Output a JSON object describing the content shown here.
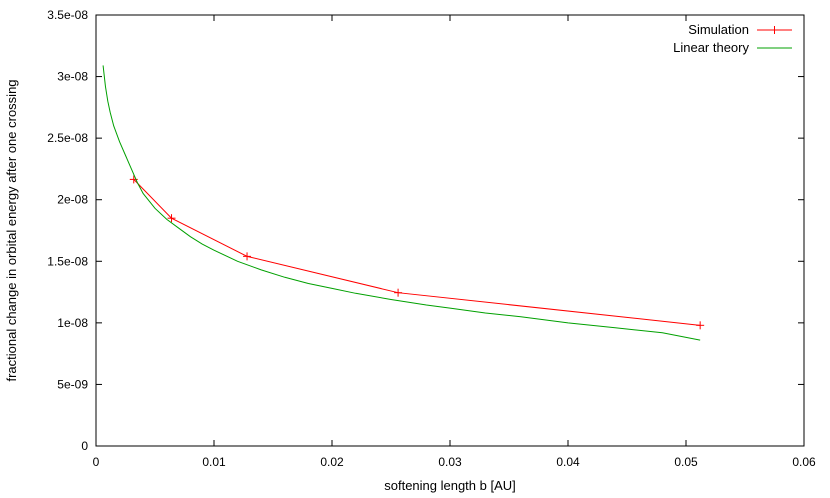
{
  "chart_data": {
    "type": "line",
    "title": "",
    "xlabel": "softening length b [AU]",
    "ylabel": "fractional change in orbital energy after one crossing",
    "xlim": [
      0,
      0.06
    ],
    "ylim": [
      0,
      3.5e-08
    ],
    "x_ticks": [
      0,
      0.01,
      0.02,
      0.03,
      0.04,
      0.05,
      0.06
    ],
    "x_tick_labels": [
      "0",
      "0.01",
      "0.02",
      "0.03",
      "0.04",
      "0.05",
      "0.06"
    ],
    "y_ticks": [
      0,
      5e-09,
      1e-08,
      1.5e-08,
      2e-08,
      2.5e-08,
      3e-08,
      3.5e-08
    ],
    "y_tick_labels": [
      "0",
      "5e-09",
      "1e-08",
      "1.5e-08",
      "2e-08",
      "2.5e-08",
      "3e-08",
      "3.5e-08"
    ],
    "grid": false,
    "legend_position": "top-right",
    "series": [
      {
        "name": "Simulation",
        "color": "#ff0000",
        "marker": "plus",
        "x": [
          0.0032,
          0.0064,
          0.0128,
          0.0256,
          0.0512
        ],
        "y": [
          2.165e-08,
          1.85e-08,
          1.54e-08,
          1.245e-08,
          9.8e-09
        ]
      },
      {
        "name": "Linear theory",
        "color": "#00a000",
        "marker": "none",
        "x": [
          0.0006,
          0.0008,
          0.001,
          0.0012,
          0.0015,
          0.002,
          0.0025,
          0.003,
          0.0035,
          0.004,
          0.005,
          0.006,
          0.007,
          0.008,
          0.009,
          0.01,
          0.012,
          0.014,
          0.016,
          0.018,
          0.02,
          0.022,
          0.025,
          0.028,
          0.03,
          0.033,
          0.036,
          0.04,
          0.044,
          0.048,
          0.0512
        ],
        "y": [
          3.09e-08,
          2.92e-08,
          2.8e-08,
          2.71e-08,
          2.6e-08,
          2.47e-08,
          2.36e-08,
          2.25e-08,
          2.14e-08,
          2.05e-08,
          1.93e-08,
          1.84e-08,
          1.77e-08,
          1.7e-08,
          1.64e-08,
          1.59e-08,
          1.5e-08,
          1.43e-08,
          1.37e-08,
          1.32e-08,
          1.28e-08,
          1.24e-08,
          1.19e-08,
          1.145e-08,
          1.12e-08,
          1.08e-08,
          1.05e-08,
          1e-08,
          9.6e-09,
          9.2e-09,
          8.6e-09
        ]
      }
    ]
  }
}
